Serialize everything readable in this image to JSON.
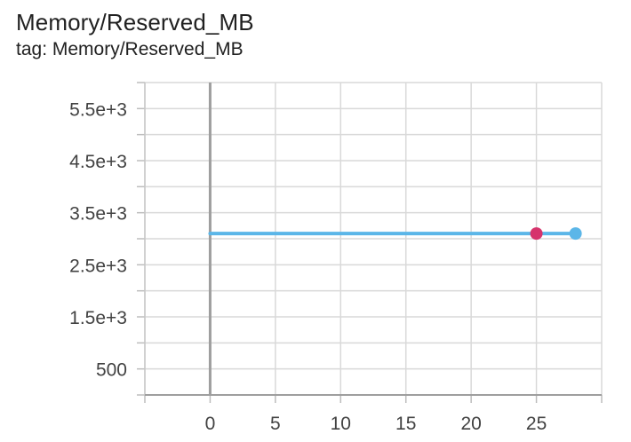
{
  "card": {
    "title": "Memory/Reserved_MB",
    "subtitle": "tag: Memory/Reserved_MB"
  },
  "colors": {
    "series_line": "#5bb6e8",
    "marker_primary": "#5bb6e8",
    "marker_secondary": "#d6336c",
    "grid": "#d9d9d9",
    "axis": "#9e9e9e"
  },
  "chart_data": {
    "type": "line",
    "title": "Memory/Reserved_MB",
    "subtitle": "tag: Memory/Reserved_MB",
    "xlabel": "",
    "ylabel": "",
    "xlim": [
      -5,
      30
    ],
    "ylim": [
      0,
      6000
    ],
    "x_ticks": [
      0,
      5,
      10,
      15,
      20,
      25
    ],
    "x_tick_labels": [
      "0",
      "5",
      "10",
      "15",
      "20",
      "25"
    ],
    "y_ticks": [
      500,
      1500,
      2500,
      3500,
      4500,
      5500
    ],
    "y_tick_labels": [
      "500",
      "1.5e+3",
      "2.5e+3",
      "3.5e+3",
      "4.5e+3",
      "5.5e+3"
    ],
    "grid": true,
    "series": [
      {
        "x": [
          0,
          28
        ],
        "y": [
          3100,
          3100
        ]
      }
    ],
    "markers": [
      {
        "x": 25,
        "y": 3100,
        "color": "#d6336c"
      },
      {
        "x": 28,
        "y": 3100,
        "color": "#5bb6e8"
      }
    ]
  }
}
